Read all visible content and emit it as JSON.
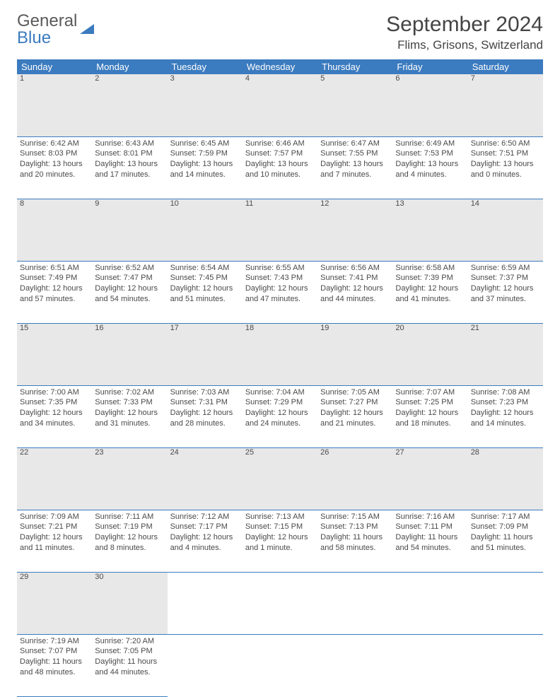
{
  "logo": {
    "line1": "General",
    "line2": "Blue"
  },
  "title": "September 2024",
  "location": "Flims, Grisons, Switzerland",
  "colors": {
    "header_bg": "#3b7bbf",
    "header_fg": "#ffffff",
    "daynum_bg": "#e8e8e8",
    "rule": "#3b7bbf",
    "text": "#4a4a4a"
  },
  "dayHeaders": [
    "Sunday",
    "Monday",
    "Tuesday",
    "Wednesday",
    "Thursday",
    "Friday",
    "Saturday"
  ],
  "weeks": [
    [
      {
        "n": "1",
        "sr": "6:42 AM",
        "ss": "8:03 PM",
        "dl": "13 hours and 20 minutes."
      },
      {
        "n": "2",
        "sr": "6:43 AM",
        "ss": "8:01 PM",
        "dl": "13 hours and 17 minutes."
      },
      {
        "n": "3",
        "sr": "6:45 AM",
        "ss": "7:59 PM",
        "dl": "13 hours and 14 minutes."
      },
      {
        "n": "4",
        "sr": "6:46 AM",
        "ss": "7:57 PM",
        "dl": "13 hours and 10 minutes."
      },
      {
        "n": "5",
        "sr": "6:47 AM",
        "ss": "7:55 PM",
        "dl": "13 hours and 7 minutes."
      },
      {
        "n": "6",
        "sr": "6:49 AM",
        "ss": "7:53 PM",
        "dl": "13 hours and 4 minutes."
      },
      {
        "n": "7",
        "sr": "6:50 AM",
        "ss": "7:51 PM",
        "dl": "13 hours and 0 minutes."
      }
    ],
    [
      {
        "n": "8",
        "sr": "6:51 AM",
        "ss": "7:49 PM",
        "dl": "12 hours and 57 minutes."
      },
      {
        "n": "9",
        "sr": "6:52 AM",
        "ss": "7:47 PM",
        "dl": "12 hours and 54 minutes."
      },
      {
        "n": "10",
        "sr": "6:54 AM",
        "ss": "7:45 PM",
        "dl": "12 hours and 51 minutes."
      },
      {
        "n": "11",
        "sr": "6:55 AM",
        "ss": "7:43 PM",
        "dl": "12 hours and 47 minutes."
      },
      {
        "n": "12",
        "sr": "6:56 AM",
        "ss": "7:41 PM",
        "dl": "12 hours and 44 minutes."
      },
      {
        "n": "13",
        "sr": "6:58 AM",
        "ss": "7:39 PM",
        "dl": "12 hours and 41 minutes."
      },
      {
        "n": "14",
        "sr": "6:59 AM",
        "ss": "7:37 PM",
        "dl": "12 hours and 37 minutes."
      }
    ],
    [
      {
        "n": "15",
        "sr": "7:00 AM",
        "ss": "7:35 PM",
        "dl": "12 hours and 34 minutes."
      },
      {
        "n": "16",
        "sr": "7:02 AM",
        "ss": "7:33 PM",
        "dl": "12 hours and 31 minutes."
      },
      {
        "n": "17",
        "sr": "7:03 AM",
        "ss": "7:31 PM",
        "dl": "12 hours and 28 minutes."
      },
      {
        "n": "18",
        "sr": "7:04 AM",
        "ss": "7:29 PM",
        "dl": "12 hours and 24 minutes."
      },
      {
        "n": "19",
        "sr": "7:05 AM",
        "ss": "7:27 PM",
        "dl": "12 hours and 21 minutes."
      },
      {
        "n": "20",
        "sr": "7:07 AM",
        "ss": "7:25 PM",
        "dl": "12 hours and 18 minutes."
      },
      {
        "n": "21",
        "sr": "7:08 AM",
        "ss": "7:23 PM",
        "dl": "12 hours and 14 minutes."
      }
    ],
    [
      {
        "n": "22",
        "sr": "7:09 AM",
        "ss": "7:21 PM",
        "dl": "12 hours and 11 minutes."
      },
      {
        "n": "23",
        "sr": "7:11 AM",
        "ss": "7:19 PM",
        "dl": "12 hours and 8 minutes."
      },
      {
        "n": "24",
        "sr": "7:12 AM",
        "ss": "7:17 PM",
        "dl": "12 hours and 4 minutes."
      },
      {
        "n": "25",
        "sr": "7:13 AM",
        "ss": "7:15 PM",
        "dl": "12 hours and 1 minute."
      },
      {
        "n": "26",
        "sr": "7:15 AM",
        "ss": "7:13 PM",
        "dl": "11 hours and 58 minutes."
      },
      {
        "n": "27",
        "sr": "7:16 AM",
        "ss": "7:11 PM",
        "dl": "11 hours and 54 minutes."
      },
      {
        "n": "28",
        "sr": "7:17 AM",
        "ss": "7:09 PM",
        "dl": "11 hours and 51 minutes."
      }
    ],
    [
      {
        "n": "29",
        "sr": "7:19 AM",
        "ss": "7:07 PM",
        "dl": "11 hours and 48 minutes."
      },
      {
        "n": "30",
        "sr": "7:20 AM",
        "ss": "7:05 PM",
        "dl": "11 hours and 44 minutes."
      },
      null,
      null,
      null,
      null,
      null
    ]
  ],
  "labels": {
    "sunrise": "Sunrise:",
    "sunset": "Sunset:",
    "daylight": "Daylight:"
  }
}
